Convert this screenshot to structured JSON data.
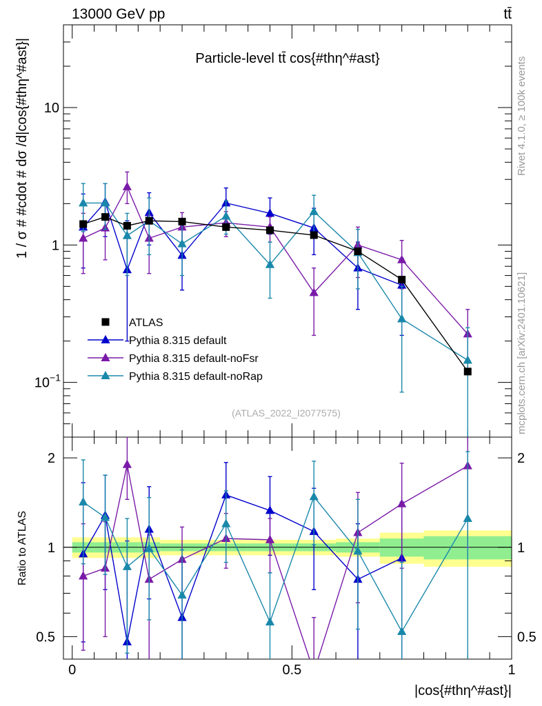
{
  "header": {
    "energy_label": "13000 GeV pp",
    "process_label": "tt̄"
  },
  "side_labels": {
    "rivet": "Rivet 4.1.0, ≥ 100k events",
    "source": "mcplots.cern.ch [arXiv:2401.10621]"
  },
  "chart_data": [
    {
      "type": "scatter",
      "panel": "main",
      "title": "Particle-level tt̄ cos{#thη^#ast}",
      "xlabel": "|cos{#thη^#ast}|",
      "ylabel": "1 / σ # #cdot # dσ /d|cos{#thη^#ast}|",
      "xlim": [
        -0.02,
        1.0
      ],
      "ylim": [
        0.04,
        40
      ],
      "yscale": "log",
      "ytick_labels": [
        "10^{-1}",
        "1",
        "10"
      ],
      "watermark": "(ATLAS_2022_I2077575)",
      "legend_position": "bottom-left",
      "x": [
        0.025,
        0.075,
        0.125,
        0.175,
        0.25,
        0.35,
        0.45,
        0.55,
        0.65,
        0.75,
        0.9
      ],
      "series": [
        {
          "name": "ATLAS",
          "color": "#000000",
          "marker": "square",
          "values": [
            1.42,
            1.6,
            1.38,
            1.5,
            1.48,
            1.35,
            1.28,
            1.18,
            0.9,
            0.56,
            0.12
          ]
        },
        {
          "name": "Pythia 8.315 default",
          "color": "#0000cc",
          "marker": "triangle",
          "values": [
            1.35,
            2.05,
            0.66,
            1.72,
            0.84,
            2.02,
            1.7,
            1.33,
            0.68,
            0.51,
            null
          ],
          "err_low": [
            0.68,
            1.15,
            0.2,
            1.0,
            0.47,
            1.45,
            1.2,
            0.85,
            0.34,
            0.22,
            null
          ],
          "err_high": [
            2.35,
            2.8,
            1.5,
            2.4,
            1.35,
            2.6,
            2.2,
            1.85,
            1.05,
            0.8,
            null
          ]
        },
        {
          "name": "Pythia 8.315 default-noFsr",
          "color": "#7a1aa8",
          "marker": "triangle",
          "values": [
            1.12,
            1.33,
            2.65,
            1.12,
            1.35,
            1.45,
            1.35,
            0.45,
            1.0,
            0.78,
            0.225
          ],
          "err_low": [
            0.62,
            0.78,
            2.0,
            0.62,
            1.0,
            1.15,
            1.05,
            0.22,
            0.58,
            0.48,
            0.12
          ],
          "err_high": [
            1.7,
            1.95,
            3.4,
            1.65,
            1.72,
            1.75,
            1.6,
            0.68,
            1.35,
            1.08,
            0.34
          ]
        },
        {
          "name": "Pythia 8.315 default-noRap",
          "color": "#1a88aa",
          "marker": "triangle",
          "values": [
            2.02,
            2.02,
            1.17,
            1.5,
            1.02,
            1.62,
            0.72,
            1.75,
            0.88,
            0.29,
            0.145
          ],
          "err_low": [
            1.25,
            1.3,
            0.6,
            0.85,
            0.6,
            1.2,
            0.41,
            1.2,
            0.48,
            0.085,
            0.03
          ],
          "err_high": [
            2.8,
            2.8,
            1.7,
            2.2,
            1.45,
            2.1,
            1.05,
            2.3,
            1.3,
            0.5,
            0.25
          ]
        }
      ]
    },
    {
      "type": "line",
      "panel": "ratio",
      "xlabel": "|cos{#thη^#ast}|",
      "ylabel": "Ratio to ATLAS",
      "xlim": [
        -0.02,
        1.0
      ],
      "ylim": [
        0.42,
        2.35
      ],
      "yscale": "log",
      "ytick_labels": [
        "0.5",
        "1",
        "2"
      ],
      "xtick_labels": [
        "0",
        "0.5",
        "1"
      ],
      "reference_line": 1,
      "band_bins": [
        0,
        0.05,
        0.1,
        0.15,
        0.2,
        0.3,
        0.4,
        0.5,
        0.6,
        0.7,
        0.8,
        1.0
      ],
      "band_inner_half": [
        0.04,
        0.04,
        0.04,
        0.04,
        0.03,
        0.03,
        0.03,
        0.03,
        0.04,
        0.07,
        0.09
      ],
      "band_outer_half": [
        0.08,
        0.08,
        0.08,
        0.08,
        0.06,
        0.06,
        0.06,
        0.06,
        0.07,
        0.12,
        0.14
      ],
      "band_colors": {
        "inner": "#90ee90",
        "outer": "#ffff90"
      },
      "x": [
        0.025,
        0.075,
        0.125,
        0.175,
        0.25,
        0.35,
        0.45,
        0.55,
        0.65,
        0.75,
        0.9
      ],
      "series": [
        {
          "name": "Pythia 8.315 default",
          "color": "#0000cc",
          "values": [
            0.95,
            1.28,
            0.48,
            1.15,
            0.58,
            1.5,
            1.33,
            1.13,
            0.78,
            0.92,
            null
          ],
          "err_low": [
            0.48,
            0.72,
            0.2,
            0.67,
            0.32,
            1.08,
            0.94,
            0.72,
            0.38,
            0.4,
            null
          ],
          "err_high": [
            1.65,
            1.75,
            1.05,
            1.6,
            0.92,
            1.93,
            1.73,
            1.58,
            1.2,
            1.42,
            null
          ]
        },
        {
          "name": "Pythia 8.315 default-noFsr",
          "color": "#7a1aa8",
          "values": [
            0.8,
            0.85,
            1.9,
            0.78,
            0.91,
            1.07,
            1.06,
            0.38,
            1.12,
            1.4,
            1.88
          ],
          "err_low": [
            0.45,
            0.5,
            1.45,
            0.42,
            0.68,
            0.85,
            0.82,
            0.19,
            0.65,
            0.85,
            1.0
          ],
          "err_high": [
            1.2,
            1.22,
            2.5,
            1.1,
            1.17,
            1.3,
            1.25,
            0.58,
            1.53,
            1.92,
            2.8
          ]
        },
        {
          "name": "Pythia 8.315 default-noRap",
          "color": "#1a88aa",
          "values": [
            1.42,
            1.26,
            0.86,
            0.99,
            0.69,
            1.2,
            0.56,
            1.48,
            0.97,
            0.52,
            1.25
          ],
          "err_low": [
            0.88,
            0.81,
            0.44,
            0.57,
            0.41,
            0.89,
            0.32,
            1.02,
            0.53,
            0.15,
            0.25
          ],
          "err_high": [
            1.97,
            1.75,
            1.25,
            1.47,
            0.98,
            1.55,
            0.82,
            1.95,
            1.45,
            0.89,
            2.1
          ]
        }
      ]
    }
  ]
}
